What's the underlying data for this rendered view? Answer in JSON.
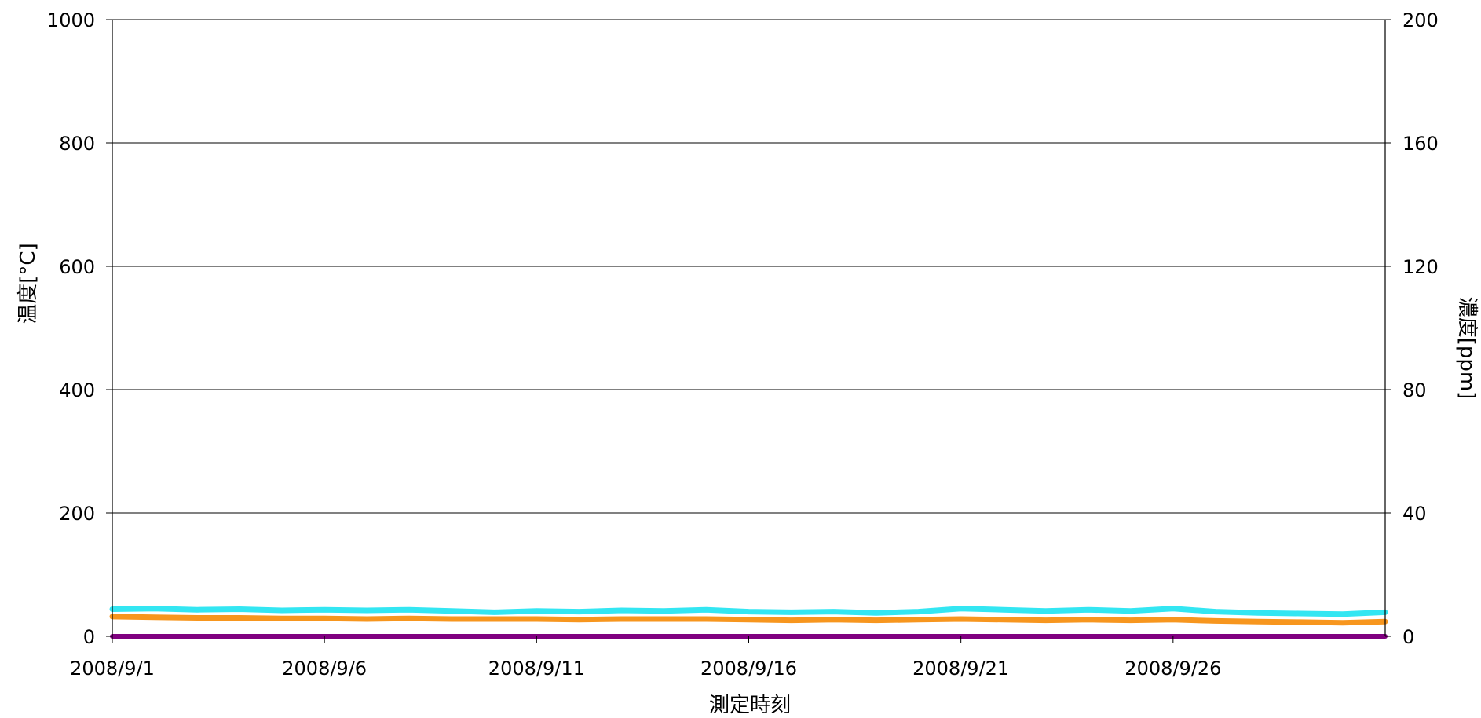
{
  "chart_data": {
    "type": "line",
    "xlabel": "測定時刻",
    "ylabel_left": "温度[°C]",
    "ylabel_right": "濃度[ppm]",
    "x_range": [
      "2008/9/1",
      "2008/10/1"
    ],
    "x_tick_labels": [
      "2008/9/1",
      "2008/9/6",
      "2008/9/11",
      "2008/9/16",
      "2008/9/21",
      "2008/9/26"
    ],
    "ylim_left": [
      0,
      1000
    ],
    "yticks_left": [
      "0",
      "200",
      "400",
      "600",
      "800",
      "1000"
    ],
    "ylim_right": [
      0,
      200
    ],
    "yticks_right": [
      "0",
      "40",
      "80",
      "120",
      "160",
      "200"
    ],
    "grid": "horizontal",
    "series": [
      {
        "axis": "left",
        "color": "#33e6f2",
        "points": [
          [
            "2008/9/1",
            44
          ],
          [
            "2008/9/2",
            45
          ],
          [
            "2008/9/3",
            43
          ],
          [
            "2008/9/4",
            44
          ],
          [
            "2008/9/5",
            42
          ],
          [
            "2008/9/6",
            43
          ],
          [
            "2008/9/7",
            42
          ],
          [
            "2008/9/8",
            43
          ],
          [
            "2008/9/9",
            41
          ],
          [
            "2008/9/10",
            39
          ],
          [
            "2008/9/11",
            41
          ],
          [
            "2008/9/12",
            40
          ],
          [
            "2008/9/13",
            42
          ],
          [
            "2008/9/14",
            41
          ],
          [
            "2008/9/15",
            43
          ],
          [
            "2008/9/16",
            40
          ],
          [
            "2008/9/17",
            39
          ],
          [
            "2008/9/18",
            40
          ],
          [
            "2008/9/19",
            38
          ],
          [
            "2008/9/20",
            40
          ],
          [
            "2008/9/21",
            45
          ],
          [
            "2008/9/22",
            43
          ],
          [
            "2008/9/23",
            41
          ],
          [
            "2008/9/24",
            43
          ],
          [
            "2008/9/25",
            41
          ],
          [
            "2008/9/26",
            45
          ],
          [
            "2008/9/27",
            40
          ],
          [
            "2008/9/28",
            38
          ],
          [
            "2008/9/29",
            37
          ],
          [
            "2008/9/30",
            36
          ],
          [
            "2008/10/1",
            39
          ]
        ]
      },
      {
        "axis": "left",
        "color": "#f7961e",
        "points": [
          [
            "2008/9/1",
            32
          ],
          [
            "2008/9/2",
            31
          ],
          [
            "2008/9/3",
            30
          ],
          [
            "2008/9/4",
            30
          ],
          [
            "2008/9/5",
            29
          ],
          [
            "2008/9/6",
            29
          ],
          [
            "2008/9/7",
            28
          ],
          [
            "2008/9/8",
            29
          ],
          [
            "2008/9/9",
            28
          ],
          [
            "2008/9/10",
            28
          ],
          [
            "2008/9/11",
            28
          ],
          [
            "2008/9/12",
            27
          ],
          [
            "2008/9/13",
            28
          ],
          [
            "2008/9/14",
            28
          ],
          [
            "2008/9/15",
            28
          ],
          [
            "2008/9/16",
            27
          ],
          [
            "2008/9/17",
            26
          ],
          [
            "2008/9/18",
            27
          ],
          [
            "2008/9/19",
            26
          ],
          [
            "2008/9/20",
            27
          ],
          [
            "2008/9/21",
            28
          ],
          [
            "2008/9/22",
            27
          ],
          [
            "2008/9/23",
            26
          ],
          [
            "2008/9/24",
            27
          ],
          [
            "2008/9/25",
            26
          ],
          [
            "2008/9/26",
            27
          ],
          [
            "2008/9/27",
            25
          ],
          [
            "2008/9/28",
            24
          ],
          [
            "2008/9/29",
            23
          ],
          [
            "2008/9/30",
            22
          ],
          [
            "2008/10/1",
            24
          ]
        ]
      },
      {
        "axis": "right",
        "color": "#800080",
        "points": [
          [
            "2008/9/1",
            0
          ],
          [
            "2008/10/1",
            0
          ]
        ]
      }
    ]
  }
}
